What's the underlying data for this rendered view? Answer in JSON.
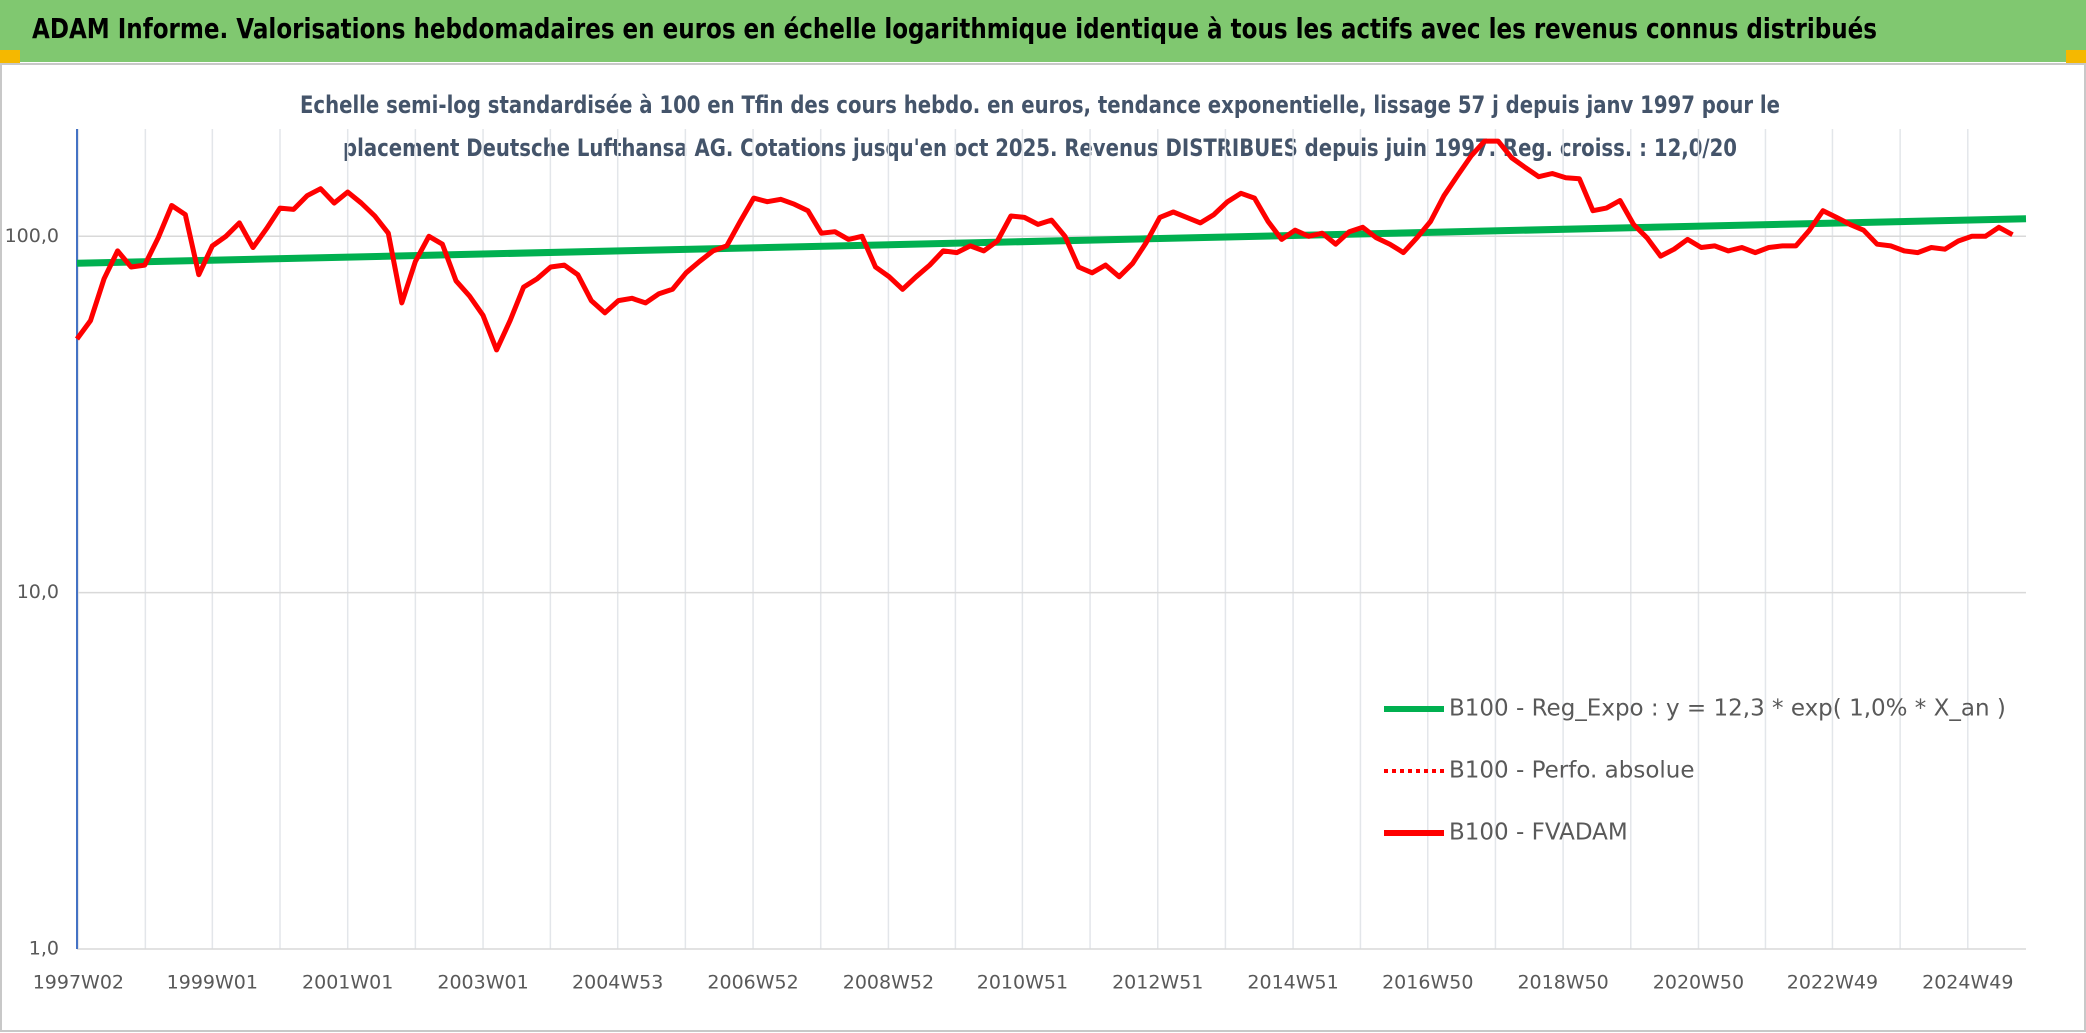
{
  "header": {
    "title": "ADAM Informe. Valorisations hebdomadaires en euros en échelle logarithmique identique à tous les actifs avec les revenus connus distribués"
  },
  "chart_data": {
    "type": "line",
    "subtitle": [
      "Echelle semi-log standardisée à 100 en Tfin des cours hebdo. en euros, tendance exponentielle, lissage 57 j depuis janv 1997 pour le",
      "placement Deutsche Lufthansa AG. Cotations jusqu'en oct 2025. Revenus DISTRIBUES depuis juin 1997. Reg. croiss. : 12,0/20"
    ],
    "log_scale": true,
    "grid": true,
    "legend": "lower right",
    "ylim": [
      1,
      200
    ],
    "yticks": [
      {
        "value": 1,
        "label": "1,0"
      },
      {
        "value": 10,
        "label": "10,0"
      },
      {
        "value": 100,
        "label": "100,0"
      }
    ],
    "xlim": [
      1997.0,
      2025.8
    ],
    "xticks": [
      {
        "value": 1997.02,
        "label": "1997W02"
      },
      {
        "value": 1999.0,
        "label": "1999W01"
      },
      {
        "value": 2001.0,
        "label": "2001W01"
      },
      {
        "value": 2003.0,
        "label": "2003W01"
      },
      {
        "value": 2004.99,
        "label": "2004W53"
      },
      {
        "value": 2006.99,
        "label": "2006W52"
      },
      {
        "value": 2008.99,
        "label": "2008W52"
      },
      {
        "value": 2010.97,
        "label": "2010W51"
      },
      {
        "value": 2012.97,
        "label": "2012W51"
      },
      {
        "value": 2014.97,
        "label": "2014W51"
      },
      {
        "value": 2016.96,
        "label": "2016W50"
      },
      {
        "value": 2018.96,
        "label": "2018W50"
      },
      {
        "value": 2020.96,
        "label": "2020W50"
      },
      {
        "value": 2022.94,
        "label": "2022W49"
      },
      {
        "value": 2024.94,
        "label": "2024W49"
      }
    ],
    "series": [
      {
        "name": "B100 - Reg_Expo : y = 12,3 * exp( 1,0% *  X_an )",
        "color": "#00b050",
        "dash": "solid",
        "x": [
          1997.0,
          2025.8
        ],
        "values": [
          84,
          112
        ]
      },
      {
        "name": "B100 - Perfo. absolue",
        "color": "#ff0000",
        "dash": "dotted"
      },
      {
        "name": "B100 - FVADAM",
        "color": "#ff0000",
        "dash": "solid",
        "x": [
          1997,
          1997.2,
          1997.4,
          1997.6,
          1997.8,
          1998,
          1998.2,
          1998.4,
          1998.6,
          1998.8,
          1999,
          1999.2,
          1999.4,
          1999.6,
          1999.8,
          2000,
          2000.2,
          2000.4,
          2000.6,
          2000.8,
          2001,
          2001.2,
          2001.4,
          2001.6,
          2001.8,
          2002,
          2002.2,
          2002.4,
          2002.6,
          2002.8,
          2003,
          2003.2,
          2003.4,
          2003.6,
          2003.8,
          2004,
          2004.2,
          2004.4,
          2004.6,
          2004.8,
          2005,
          2005.2,
          2005.4,
          2005.6,
          2005.8,
          2006,
          2006.2,
          2006.4,
          2006.6,
          2006.8,
          2007,
          2007.2,
          2007.4,
          2007.6,
          2007.8,
          2008,
          2008.2,
          2008.4,
          2008.6,
          2008.8,
          2009,
          2009.2,
          2009.4,
          2009.6,
          2009.8,
          2010,
          2010.2,
          2010.4,
          2010.6,
          2010.8,
          2011,
          2011.2,
          2011.4,
          2011.6,
          2011.8,
          2012,
          2012.2,
          2012.4,
          2012.6,
          2012.8,
          2013,
          2013.2,
          2013.4,
          2013.6,
          2013.8,
          2014,
          2014.2,
          2014.4,
          2014.6,
          2014.8,
          2015,
          2015.2,
          2015.4,
          2015.6,
          2015.8,
          2016,
          2016.2,
          2016.4,
          2016.6,
          2016.8,
          2017,
          2017.2,
          2017.4,
          2017.6,
          2017.8,
          2018,
          2018.2,
          2018.4,
          2018.6,
          2018.8,
          2019,
          2019.2,
          2019.4,
          2019.6,
          2019.8,
          2020,
          2020.2,
          2020.4,
          2020.6,
          2020.8,
          2021,
          2021.2,
          2021.4,
          2021.6,
          2021.8,
          2022,
          2022.2,
          2022.4,
          2022.6,
          2022.8,
          2023,
          2023.2,
          2023.4,
          2023.6,
          2023.8,
          2024,
          2024.2,
          2024.4,
          2024.6,
          2024.8,
          2025,
          2025.2,
          2025.4,
          2025.6
        ],
        "values": [
          51.5,
          58,
          76,
          91,
          82,
          83,
          99,
          122,
          115,
          78,
          94,
          100,
          109,
          93,
          105,
          120,
          119,
          130,
          136,
          124,
          133,
          124,
          114,
          102,
          65,
          85,
          100,
          95,
          75,
          68,
          60,
          48,
          58,
          72,
          76,
          82,
          83,
          78,
          66,
          61,
          66,
          67,
          65,
          69,
          71,
          79,
          85,
          91,
          94,
          110,
          128,
          125,
          127,
          123,
          118,
          102,
          103,
          98,
          100,
          82,
          77,
          71,
          77,
          83,
          91,
          90,
          94,
          91,
          97,
          114,
          113,
          108,
          111,
          100,
          82,
          79,
          83,
          77,
          84,
          96,
          113,
          117,
          113,
          109,
          115,
          125,
          132,
          128,
          110,
          98,
          104,
          100,
          102,
          95,
          103,
          106,
          99,
          95,
          90,
          99,
          110,
          130,
          148,
          168,
          185,
          185,
          166,
          156,
          147,
          150,
          146,
          145,
          118,
          120,
          126,
          108,
          99,
          88,
          92,
          98,
          93,
          94,
          91,
          93,
          90,
          93,
          94,
          94,
          104,
          118,
          113,
          108,
          104,
          95,
          94,
          91,
          90,
          93,
          92,
          97,
          100,
          100,
          106,
          101
        ]
      }
    ]
  }
}
